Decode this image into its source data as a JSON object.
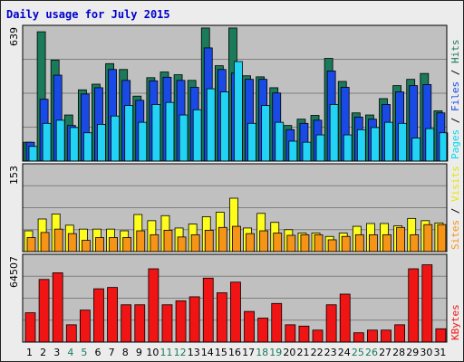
{
  "chart_data": {
    "type": "bar",
    "title": "Daily usage for July 2015",
    "categories": [
      "1",
      "2",
      "3",
      "4",
      "5",
      "6",
      "7",
      "8",
      "9",
      "10",
      "11",
      "12",
      "13",
      "14",
      "15",
      "16",
      "17",
      "18",
      "19",
      "20",
      "21",
      "22",
      "23",
      "24",
      "25",
      "26",
      "27",
      "28",
      "29",
      "30",
      "31"
    ],
    "weekend_days": [
      "4",
      "5",
      "11",
      "12",
      "18",
      "19",
      "25",
      "26"
    ],
    "panels": [
      {
        "id": "hits",
        "ymax_label": "639",
        "ylim": [
          0,
          639
        ],
        "grid": true,
        "series": [
          {
            "name": "Hits",
            "color": "#1a7a5a",
            "values": [
              90,
              617,
              482,
              220,
              340,
              367,
              465,
              437,
              310,
              398,
              425,
              412,
              385,
              635,
              455,
              635,
              407,
              402,
              350,
              170,
              200,
              218,
              490,
              380,
              230,
              220,
              298,
              360,
              390,
              418,
              240
            ]
          },
          {
            "name": "Files",
            "color": "#1a4ae6",
            "values": [
              90,
              295,
              410,
              170,
              320,
              350,
              437,
              385,
              290,
              383,
              400,
              385,
              352,
              540,
              437,
              420,
              390,
              390,
              325,
              150,
              180,
              195,
              430,
              352,
              210,
              200,
              270,
              330,
              360,
              365,
              230
            ]
          },
          {
            "name": "Pages",
            "color": "#22d3f5",
            "values": [
              70,
              180,
              195,
              160,
              135,
              175,
              215,
              265,
              185,
              270,
              280,
              220,
              245,
              345,
              330,
              475,
              180,
              265,
              185,
              95,
              90,
              125,
              270,
              125,
              150,
              160,
              185,
              180,
              110,
              155,
              135
            ]
          }
        ]
      },
      {
        "id": "visits",
        "ymax_label": "153",
        "ylim": [
          0,
          153
        ],
        "grid": true,
        "series": [
          {
            "name": "Visits",
            "color": "#fdfd1e",
            "values": [
              37,
              58,
              67,
              47,
              40,
              40,
              40,
              37,
              66,
              55,
              64,
              42,
              49,
              62,
              70,
              95,
              42,
              68,
              52,
              39,
              33,
              33,
              27,
              33,
              45,
              50,
              50,
              46,
              59,
              55,
              51
            ]
          },
          {
            "name": "Sites",
            "color": "#f59416",
            "values": [
              25,
              34,
              40,
              32,
              20,
              25,
              25,
              25,
              37,
              30,
              38,
              26,
              30,
              38,
              43,
              45,
              32,
              37,
              33,
              29,
              30,
              30,
              21,
              27,
              30,
              30,
              30,
              43,
              30,
              48,
              48
            ]
          }
        ]
      },
      {
        "id": "kbytes",
        "ymax_label": "64507",
        "ylim": [
          0,
          64507
        ],
        "grid": true,
        "series": [
          {
            "name": "KBytes",
            "color": "#f01414",
            "values": [
              22000,
              47000,
              52000,
              13000,
              24000,
              40000,
              41000,
              28000,
              28000,
              55000,
              28000,
              31000,
              34000,
              48000,
              37000,
              45000,
              23000,
              18000,
              29000,
              13000,
              12000,
              9000,
              28000,
              36000,
              7000,
              9000,
              9000,
              13000,
              55000,
              58000,
              10000
            ]
          }
        ]
      }
    ]
  },
  "side_labels": [
    [
      {
        "text": "Pages",
        "color": "#00d8f0"
      },
      {
        "text": " / ",
        "color": "#000000"
      },
      {
        "text": "Files",
        "color": "#1a4ae6"
      },
      {
        "text": " / ",
        "color": "#000000"
      },
      {
        "text": "Hits",
        "color": "#1a7a5a"
      }
    ],
    [
      {
        "text": "Sites",
        "color": "#f59416"
      },
      {
        "text": " / ",
        "color": "#000000"
      },
      {
        "text": "Visits",
        "color": "#e6e600"
      }
    ],
    [
      {
        "text": "KBytes",
        "color": "#f01414"
      }
    ]
  ],
  "colors": {
    "background": "#ececec",
    "panel_fill": "#c0c0c0",
    "grid": "#808080",
    "weekday_label": "#000000",
    "weekend_label": "#1a7a5a",
    "title": "#0000cc"
  }
}
